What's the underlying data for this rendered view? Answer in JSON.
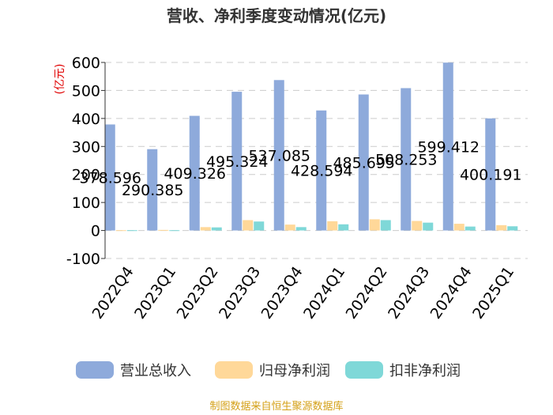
{
  "chart_data": {
    "type": "bar",
    "title": "营收、净利季度变动情况(亿元)",
    "ylabel": "(亿元)",
    "xlabel": "",
    "ylim": [
      -100,
      600
    ],
    "yticks": [
      -100,
      0,
      100,
      200,
      300,
      400,
      500,
      600
    ],
    "grid": true,
    "legend_position": "bottom",
    "categories": [
      "2022Q4",
      "2023Q1",
      "2023Q2",
      "2023Q3",
      "2023Q4",
      "2024Q1",
      "2024Q2",
      "2024Q3",
      "2024Q4",
      "2025Q1"
    ],
    "series": [
      {
        "name": "营业总收入",
        "color": "#8eaadb",
        "values": [
          378.596,
          290.385,
          409.326,
          495.324,
          537.085,
          428.594,
          485.695,
          508.253,
          599.412,
          400.191
        ],
        "data_labels": [
          "378.596",
          "290.385",
          "409.326",
          "495.324",
          "537.085",
          "428.594",
          "485.695",
          "508.253",
          "599.412",
          "400.191"
        ]
      },
      {
        "name": "归母净利润",
        "color": "#ffd899",
        "values": [
          1,
          2,
          12,
          37,
          21,
          33,
          40,
          34,
          24,
          19
        ]
      },
      {
        "name": "扣非净利润",
        "color": "#7fd8d8",
        "values": [
          1,
          1,
          11,
          32,
          12,
          22,
          37,
          28,
          14,
          15
        ]
      }
    ],
    "source": "制图数据来自恒生聚源数据库"
  }
}
